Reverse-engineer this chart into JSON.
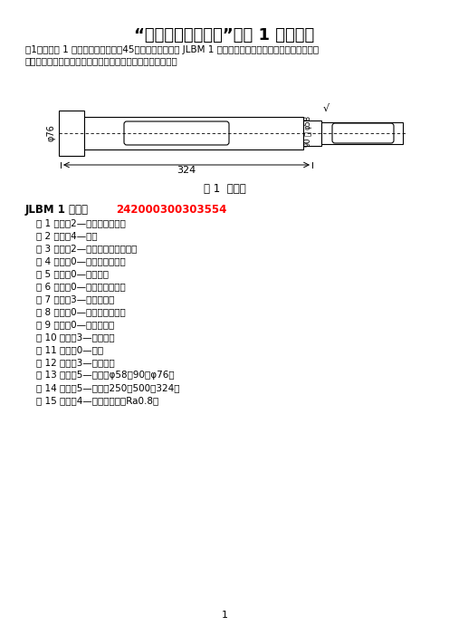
{
  "title": "“机械制造技术基础”作业 1 参考答案",
  "intro_line1": "（1）写出图 1 所示阶梯轴（材料：45；毛坤：棒料）的 JLBM 1 成组编码，要求画出零件结构简图，标明",
  "intro_line2": "与编码有关的尺寸与技术要求，并说明各位编码对应的特征。",
  "fig_caption": "图 1  阶梯轴",
  "jlbm_label": "JLBM 1 编号：",
  "jlbm_code": "242000300303554",
  "code_items": [
    "第 1 位码：2—销、杆、维大类",
    "第 2 位码：4—短轴",
    "第 3 位码：2—单一轴线，双向台阶",
    "第 4 位码：0—外部无功能要素",
    "第 5 位码：0—无轴线孔",
    "第 6 位码：0—内部无功能要素",
    "第 7 位码：3—外圆上键槽",
    "第 8 位码：0—内部无平面加工",
    "第 9 位码：0—无辅助加工",
    "第 10 位码：3—优质碳锂",
    "第 11 位码：0—棒料",
    "第 12 位码：3—调质处理",
    "第 13 位码：5—直径：φ58～90（φ76）",
    "第 14 位码：5—长度：250～500（324）",
    "第 15 位码：4—外圆高精度（Ra0.8）"
  ],
  "page_number": "1",
  "bg_color": "#ffffff",
  "text_color": "#000000",
  "red_color": "#ff0000"
}
